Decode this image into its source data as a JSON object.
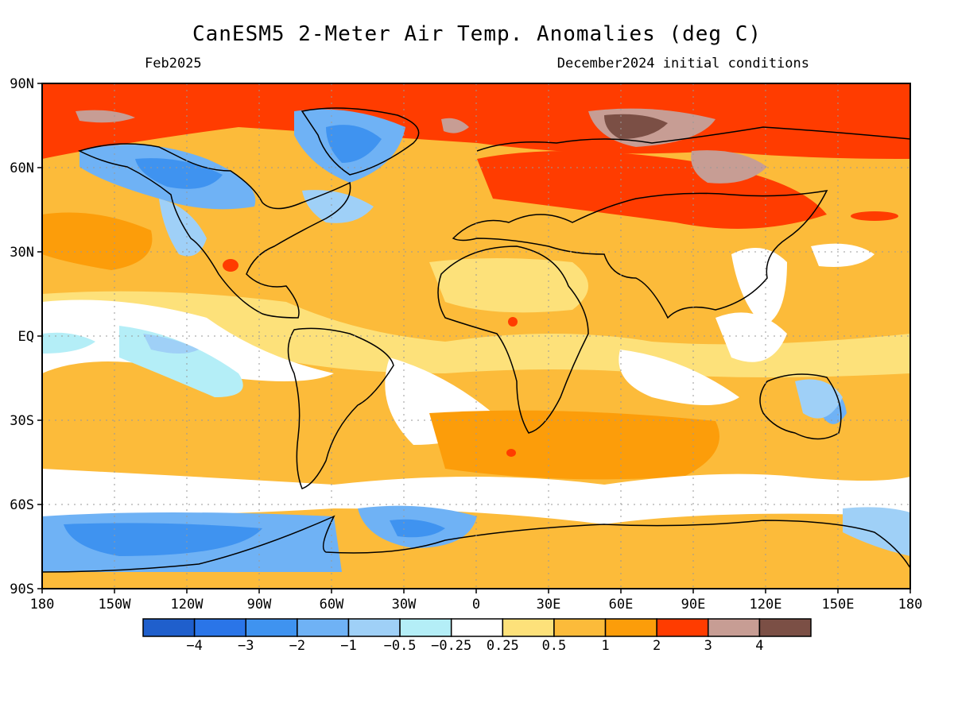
{
  "title": "CanESM5 2-Meter Air Temp. Anomalies (deg C)",
  "valid_month": "Feb2025",
  "initial_conditions": "December2024 initial conditions",
  "map": {
    "projection": "equirectangular",
    "lon_range": [
      -180,
      180
    ],
    "lat_range": [
      -90,
      90
    ],
    "lat_labels": [
      "90N",
      "60N",
      "30N",
      "EQ",
      "30S",
      "60S",
      "90S"
    ],
    "lon_labels": [
      "180",
      "150W",
      "120W",
      "90W",
      "60W",
      "30W",
      "0",
      "30E",
      "60E",
      "90E",
      "120E",
      "150E",
      "180"
    ],
    "grid": "dotted"
  },
  "colorbar": {
    "colors": [
      "#1f5fcc",
      "#2a75e8",
      "#3f93f0",
      "#6fb2f5",
      "#9fd0f7",
      "#b4eef7",
      "#ffffff",
      "#fde17a",
      "#fcbb3a",
      "#fc9d0a",
      "#ff3c00",
      "#c79d94",
      "#7b4f45"
    ],
    "tick_labels": [
      "-4",
      "-3",
      "-2",
      "-1",
      "-0.5",
      "-0.25",
      "0.25",
      "0.5",
      "1",
      "2",
      "3",
      "4"
    ]
  }
}
